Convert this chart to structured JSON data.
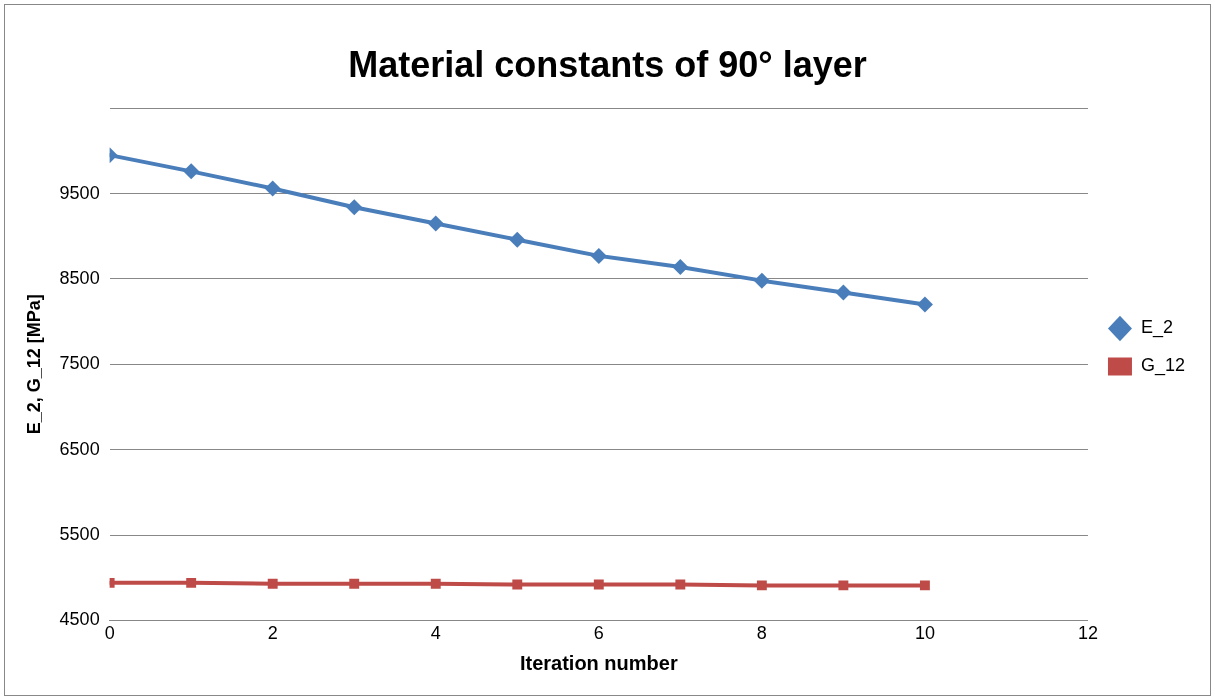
{
  "chart_data": {
    "type": "line",
    "title": "Material constants of 90° layer",
    "xlabel": "Iteration number",
    "ylabel": "E_2, G_12 [MPa]",
    "x": [
      0,
      1,
      2,
      3,
      4,
      5,
      6,
      7,
      8,
      9,
      10
    ],
    "series": [
      {
        "name": "E_2",
        "color": "#4a7ebb",
        "marker": "diamond",
        "values": [
          9950,
          9760,
          9560,
          9340,
          9150,
          8960,
          8770,
          8640,
          8480,
          8340,
          8200
        ]
      },
      {
        "name": "G_12",
        "color": "#be4b48",
        "marker": "square",
        "values": [
          4940,
          4940,
          4930,
          4930,
          4930,
          4920,
          4920,
          4920,
          4910,
          4910,
          4910
        ]
      }
    ],
    "xlim": [
      0,
      12
    ],
    "xticks": [
      0,
      2,
      4,
      6,
      8,
      10,
      12
    ],
    "ylim": [
      4500,
      10500
    ],
    "yticks": [
      4500,
      5500,
      6500,
      7500,
      8500,
      9500,
      {
        "value": 10500,
        "label": null
      }
    ],
    "grid": "y",
    "legend": "right",
    "line_style": "solid"
  }
}
